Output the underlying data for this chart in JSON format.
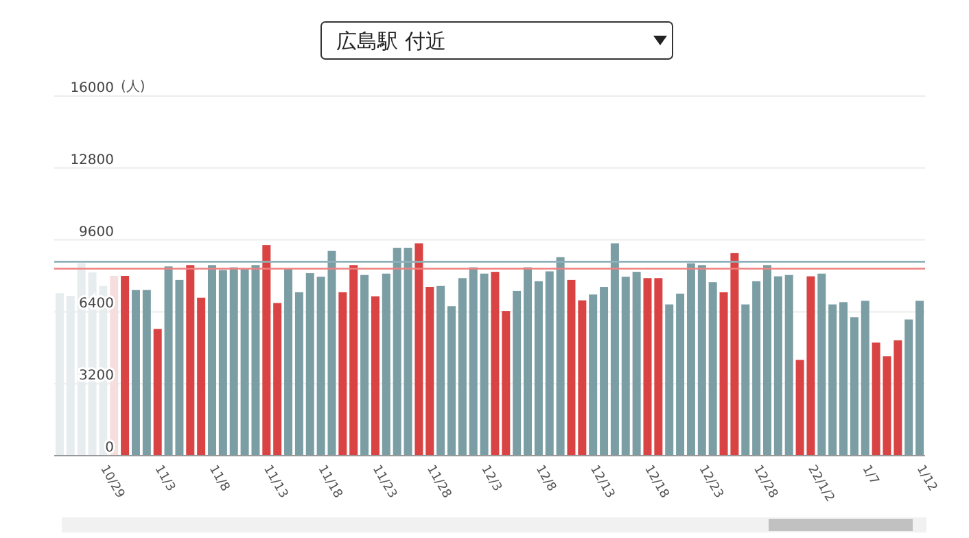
{
  "chart_data": {
    "type": "bar",
    "title": "広島駅 付近",
    "ylabel": "(人)",
    "categories": [
      null,
      null,
      null,
      null,
      "10/29",
      null,
      null,
      null,
      null,
      "11/3",
      null,
      null,
      null,
      null,
      "11/8",
      null,
      null,
      null,
      null,
      "11/13",
      null,
      null,
      null,
      null,
      "11/18",
      null,
      null,
      null,
      null,
      "11/23",
      null,
      null,
      null,
      null,
      "11/28",
      null,
      null,
      null,
      null,
      "12/3",
      null,
      null,
      null,
      null,
      "12/8",
      null,
      null,
      null,
      null,
      "12/13",
      null,
      null,
      null,
      null,
      "12/18",
      null,
      null,
      null,
      null,
      "12/23",
      null,
      null,
      null,
      null,
      "12/28",
      null,
      null,
      null,
      null,
      "22/1/2",
      null,
      null,
      null,
      null,
      "1/7",
      null,
      null,
      null,
      null,
      "1/12"
    ],
    "values": [
      7230,
      7110,
      8560,
      8160,
      7550,
      8000,
      8000,
      7370,
      7370,
      5640,
      8420,
      7820,
      8480,
      7030,
      8480,
      8260,
      8380,
      8300,
      8480,
      9370,
      6790,
      8320,
      7270,
      8120,
      7960,
      9110,
      7270,
      8480,
      8040,
      7090,
      8100,
      9250,
      9250,
      9450,
      7510,
      7550,
      6650,
      7900,
      8380,
      8100,
      8180,
      6440,
      7330,
      8380,
      7760,
      8200,
      8830,
      7820,
      6910,
      7170,
      7510,
      9450,
      7960,
      8180,
      7900,
      7900,
      6730,
      7210,
      8560,
      8480,
      7720,
      7270,
      9010,
      6730,
      7760,
      8480,
      7980,
      8040,
      4260,
      7980,
      8100,
      6730,
      6830,
      6160,
      6890,
      5030,
      4420,
      5130,
      6060,
      6890
    ],
    "colors": [
      "#e7edef",
      "#e7edef",
      "#e7edef",
      "#e7edef",
      "#e7edef",
      "#f6dede",
      "#d94343",
      "#7b9ea4",
      "#7b9ea4",
      "#d94343",
      "#7b9ea4",
      "#7b9ea4",
      "#d94343",
      "#d94343",
      "#7b9ea4",
      "#7b9ea4",
      "#7b9ea4",
      "#7b9ea4",
      "#7b9ea4",
      "#d94343",
      "#d94343",
      "#7b9ea4",
      "#7b9ea4",
      "#7b9ea4",
      "#7b9ea4",
      "#7b9ea4",
      "#d94343",
      "#d94343",
      "#7b9ea4",
      "#d94343",
      "#7b9ea4",
      "#7b9ea4",
      "#7b9ea4",
      "#d94343",
      "#d94343",
      "#7b9ea4",
      "#7b9ea4",
      "#7b9ea4",
      "#7b9ea4",
      "#7b9ea4",
      "#d94343",
      "#d94343",
      "#7b9ea4",
      "#7b9ea4",
      "#7b9ea4",
      "#7b9ea4",
      "#7b9ea4",
      "#d94343",
      "#d94343",
      "#7b9ea4",
      "#7b9ea4",
      "#7b9ea4",
      "#7b9ea4",
      "#7b9ea4",
      "#d94343",
      "#d94343",
      "#7b9ea4",
      "#7b9ea4",
      "#7b9ea4",
      "#7b9ea4",
      "#7b9ea4",
      "#d94343",
      "#d94343",
      "#7b9ea4",
      "#7b9ea4",
      "#7b9ea4",
      "#7b9ea4",
      "#7b9ea4",
      "#d94343",
      "#d94343",
      "#7b9ea4",
      "#7b9ea4",
      "#7b9ea4",
      "#7b9ea4",
      "#7b9ea4",
      "#d94343",
      "#d94343",
      "#d94343",
      "#7b9ea4",
      "#7b9ea4"
    ],
    "ylim": [
      0,
      16000
    ],
    "yticks": [
      0,
      3200,
      6400,
      9600,
      12800,
      16000
    ],
    "grid": "y",
    "ref_lines": [
      {
        "axis": "y",
        "value": 8630,
        "color": "#8fb0b8"
      },
      {
        "axis": "y",
        "value": 8320,
        "color": "#f08080"
      }
    ]
  }
}
